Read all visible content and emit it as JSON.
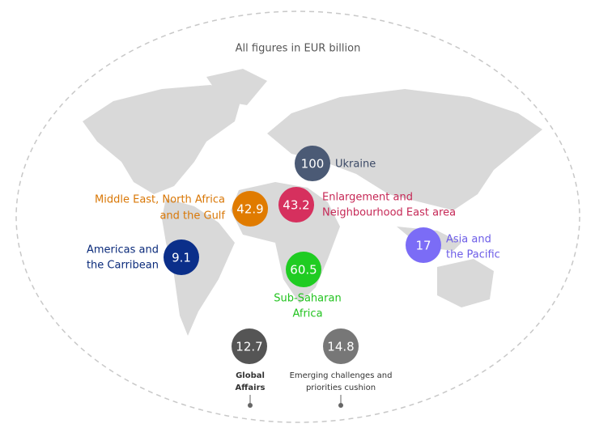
{
  "title": "All figures in EUR billion",
  "regions": [
    {
      "label": [
        "Ukraine"
      ],
      "value": 100
    },
    {
      "label": [
        "Enlargement and",
        "Neighbourhood East area"
      ],
      "value": 43.2
    },
    {
      "label": [
        "Middle East, North Africa",
        "and the Gulf"
      ],
      "value": 42.9
    },
    {
      "label": [
        "Americas and",
        "the Carribean"
      ],
      "value": 9.1
    },
    {
      "label": [
        "Asia and",
        "the Pacific"
      ],
      "value": 17
    },
    {
      "label": [
        "Sub-Saharan",
        "Africa"
      ],
      "value": 60.5
    },
    {
      "label": [
        "Global",
        "Affairs"
      ],
      "value": 12.7
    },
    {
      "label": [
        "Emerging challenges and",
        "priorities cushion"
      ],
      "value": 14.8
    }
  ]
}
